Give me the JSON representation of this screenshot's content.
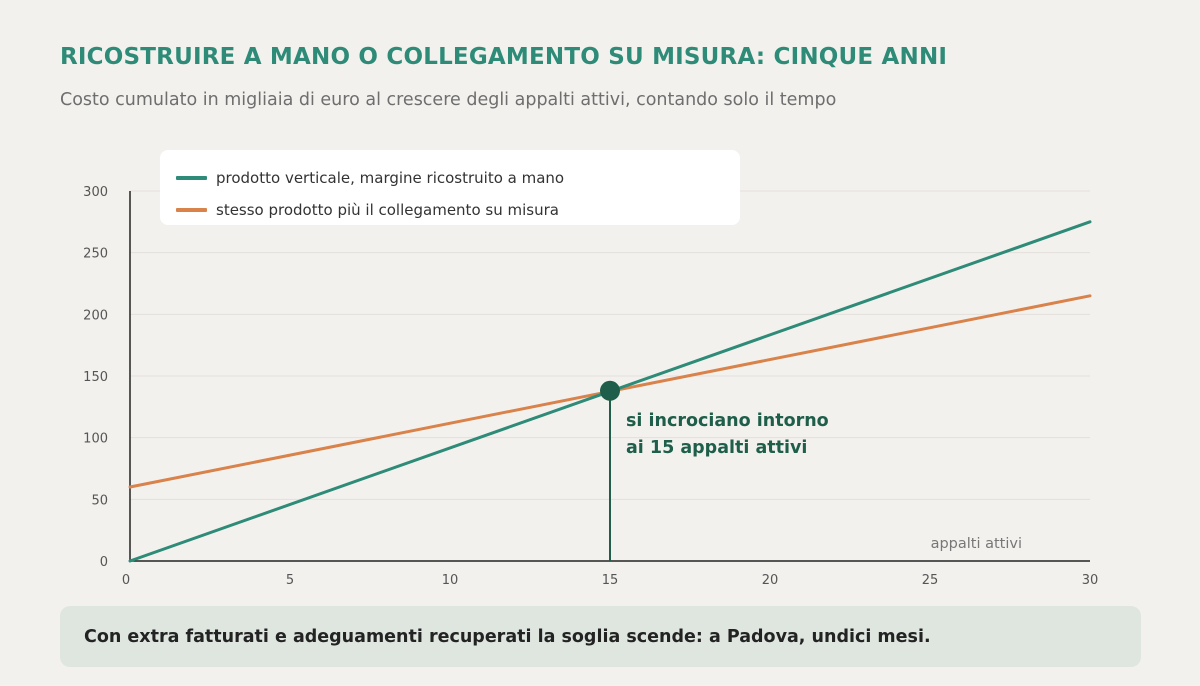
{
  "header": {
    "title": "RICOSTRUIRE A MANO O COLLEGAMENTO SU MISURA: CINQUE ANNI",
    "subtitle": "Costo cumulato in migliaia di euro al crescere degli appalti attivi, contando solo il tempo"
  },
  "chart_data": {
    "type": "line",
    "xlabel": "appalti attivi",
    "ylabel": "",
    "xlim": [
      0,
      30
    ],
    "ylim": [
      0,
      300
    ],
    "xticks": [
      0,
      5,
      10,
      15,
      20,
      25,
      30
    ],
    "yticks": [
      0,
      50,
      100,
      150,
      200,
      250,
      300
    ],
    "grid": "horizontal",
    "legend_position": "top-left",
    "series": [
      {
        "name": "prodotto verticale, margine ricostruito a mano",
        "color": "#2e8b77",
        "x": [
          0,
          30
        ],
        "y": [
          0,
          275
        ]
      },
      {
        "name": "stesso prodotto più il collegamento su misura",
        "color": "#d9824a",
        "x": [
          0,
          30
        ],
        "y": [
          60,
          215
        ]
      }
    ],
    "annotation": {
      "x": 15,
      "y": 138,
      "lines": [
        "si incrociano intorno",
        "ai 15 appalti attivi"
      ],
      "color": "#1e5e4a"
    }
  },
  "footer": {
    "note": "Con extra fatturati e adeguamenti recuperati la soglia scende: a Padova, undici mesi."
  }
}
